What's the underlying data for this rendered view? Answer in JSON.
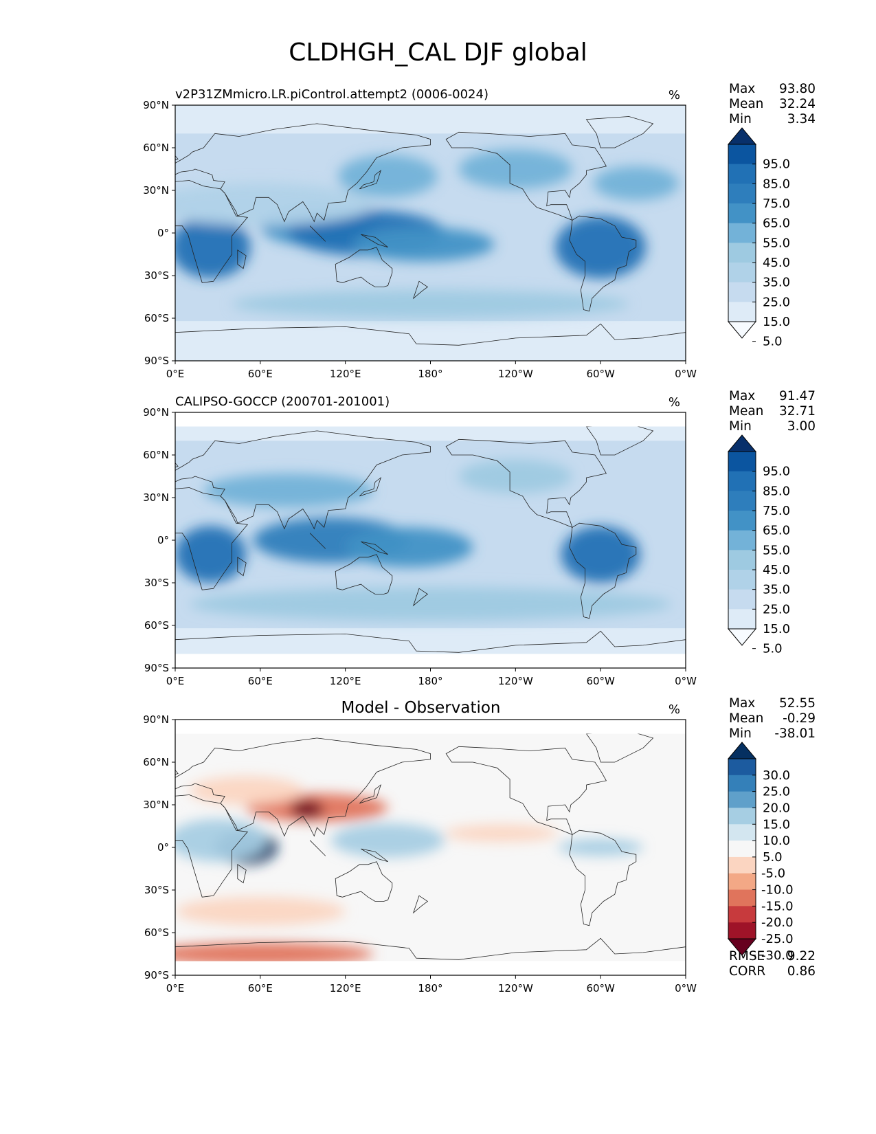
{
  "title": "CLDHGH_CAL DJF global",
  "x_ticks": [
    "0°E",
    "60°E",
    "120°E",
    "180°",
    "120°W",
    "60°W",
    "0°W"
  ],
  "y_ticks": [
    "90°N",
    "60°N",
    "30°N",
    "0°",
    "30°S",
    "60°S",
    "90°S"
  ],
  "colors": {
    "blues": [
      "#f7fbff",
      "#deebf7",
      "#c6dbef",
      "#b0d2e8",
      "#9ecae1",
      "#73b2d8",
      "#4292c6",
      "#2e7ebc",
      "#2171b5",
      "#0b55a0",
      "#08306b"
    ],
    "diverging": [
      "#67001f",
      "#9e1328",
      "#c73a3d",
      "#e0745c",
      "#f3a886",
      "#fbd5c1",
      "#f7f7f7",
      "#d3e6f0",
      "#a6cee3",
      "#5fa0ca",
      "#3480b9",
      "#1c5b9f",
      "#053061"
    ]
  },
  "chart_data": [
    {
      "type": "heatmap",
      "panel_title": "v2P31ZMmicro.LR.piControl.attempt2 (0006-0024)",
      "units": "%",
      "stats": [
        {
          "label": "Max",
          "value": "93.80"
        },
        {
          "label": "Mean",
          "value": "32.24"
        },
        {
          "label": "Min",
          "value": "3.34"
        }
      ],
      "colorbar": {
        "levels": [
          "95.0",
          "85.0",
          "75.0",
          "65.0",
          "55.0",
          "45.0",
          "35.0",
          "25.0",
          "15.0",
          "5.0"
        ],
        "extend": "both",
        "palette": "blues"
      },
      "xlim": [
        0,
        360
      ],
      "ylim": [
        -90,
        90
      ],
      "features": [
        {
          "lon": 25,
          "lat": -10,
          "rlon": 28,
          "rlat": 22,
          "value": 80
        },
        {
          "lon": 100,
          "lat": 5,
          "rlon": 40,
          "rlat": 14,
          "value": 60
        },
        {
          "lon": 135,
          "lat": 0,
          "rlon": 55,
          "rlat": 16,
          "value": 75
        },
        {
          "lon": 175,
          "lat": -8,
          "rlon": 50,
          "rlat": 12,
          "value": 55
        },
        {
          "lon": 300,
          "lat": -10,
          "rlon": 32,
          "rlat": 22,
          "value": 80
        },
        {
          "lon": 150,
          "lat": 40,
          "rlon": 35,
          "rlat": 15,
          "value": 45
        },
        {
          "lon": 240,
          "lat": 45,
          "rlon": 40,
          "rlat": 14,
          "value": 45
        },
        {
          "lon": 325,
          "lat": 35,
          "rlon": 30,
          "rlat": 12,
          "value": 45
        },
        {
          "lon": 180,
          "lat": -50,
          "rlon": 140,
          "rlat": 10,
          "value": 35
        },
        {
          "lon": 60,
          "lat": 20,
          "rlon": 80,
          "rlat": 15,
          "value": 25
        }
      ]
    },
    {
      "type": "heatmap",
      "panel_title": "CALIPSO-GOCCP (200701-201001)",
      "units": "%",
      "stats": [
        {
          "label": "Max",
          "value": "91.47"
        },
        {
          "label": "Mean",
          "value": "32.71"
        },
        {
          "label": "Min",
          "value": "3.00"
        }
      ],
      "colorbar": {
        "levels": [
          "95.0",
          "85.0",
          "75.0",
          "65.0",
          "55.0",
          "45.0",
          "35.0",
          "25.0",
          "15.0",
          "5.0"
        ],
        "extend": "both",
        "palette": "blues"
      },
      "xlim": [
        0,
        360
      ],
      "ylim": [
        -90,
        90
      ],
      "features": [
        {
          "lon": 25,
          "lat": -10,
          "rlon": 25,
          "rlat": 20,
          "value": 75
        },
        {
          "lon": 110,
          "lat": 0,
          "rlon": 55,
          "rlat": 16,
          "value": 70
        },
        {
          "lon": 165,
          "lat": -5,
          "rlon": 45,
          "rlat": 14,
          "value": 60
        },
        {
          "lon": 300,
          "lat": -10,
          "rlon": 28,
          "rlat": 20,
          "value": 75
        },
        {
          "lon": 80,
          "lat": 35,
          "rlon": 60,
          "rlat": 12,
          "value": 45
        },
        {
          "lon": 240,
          "lat": 45,
          "rlon": 40,
          "rlat": 12,
          "value": 40
        },
        {
          "lon": 180,
          "lat": -45,
          "rlon": 170,
          "rlat": 12,
          "value": 40
        }
      ]
    },
    {
      "type": "heatmap",
      "panel_title": "Model - Observation",
      "units": "%",
      "stats": [
        {
          "label": "Max",
          "value": "52.55"
        },
        {
          "label": "Mean",
          "value": "-0.29"
        },
        {
          "label": "Min",
          "value": "-38.01"
        }
      ],
      "extra_stats": [
        {
          "label": "RMSE",
          "value": "9.22"
        },
        {
          "label": "CORR",
          "value": "0.86"
        }
      ],
      "colorbar": {
        "levels": [
          "30.0",
          "25.0",
          "20.0",
          "15.0",
          "10.0",
          "5.0",
          "-5.0",
          "-10.0",
          "-15.0",
          "-20.0",
          "-25.0",
          "-30.0"
        ],
        "extend": "both",
        "palette": "diverging"
      },
      "xlim": [
        0,
        360
      ],
      "ylim": [
        -90,
        90
      ],
      "features": [
        {
          "lon": 50,
          "lat": 0,
          "rlon": 22,
          "rlat": 12,
          "value": 35
        },
        {
          "lon": 30,
          "lat": 5,
          "rlon": 35,
          "rlat": 15,
          "value": 15
        },
        {
          "lon": 150,
          "lat": 5,
          "rlon": 40,
          "rlat": 12,
          "value": 15
        },
        {
          "lon": 100,
          "lat": 28,
          "rlon": 50,
          "rlat": 10,
          "value": -18
        },
        {
          "lon": 93,
          "lat": 27,
          "rlon": 12,
          "rlat": 6,
          "value": -32
        },
        {
          "lon": 50,
          "lat": 40,
          "rlon": 40,
          "rlat": 10,
          "value": -8
        },
        {
          "lon": 60,
          "lat": -75,
          "rlon": 80,
          "rlat": 8,
          "value": -15
        },
        {
          "lon": 230,
          "lat": 10,
          "rlon": 40,
          "rlat": 6,
          "value": -8
        },
        {
          "lon": 300,
          "lat": 0,
          "rlon": 30,
          "rlat": 6,
          "value": 12
        },
        {
          "lon": 60,
          "lat": -45,
          "rlon": 60,
          "rlat": 10,
          "value": -8
        }
      ]
    }
  ]
}
